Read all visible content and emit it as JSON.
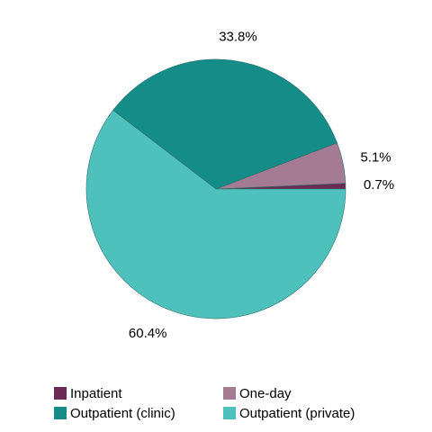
{
  "chart_data": {
    "type": "pie",
    "categories": [
      "Inpatient",
      "One-day",
      "Outpatient (clinic)",
      "Outpatient (private)"
    ],
    "values": [
      0.7,
      5.1,
      33.8,
      60.4
    ],
    "value_labels": [
      "0.7%",
      "5.1%",
      "33.8%",
      "60.4%"
    ],
    "colors": [
      "#6b2a54",
      "#a57b93",
      "#148c87",
      "#4fc1bd"
    ],
    "legend": "bottom"
  }
}
